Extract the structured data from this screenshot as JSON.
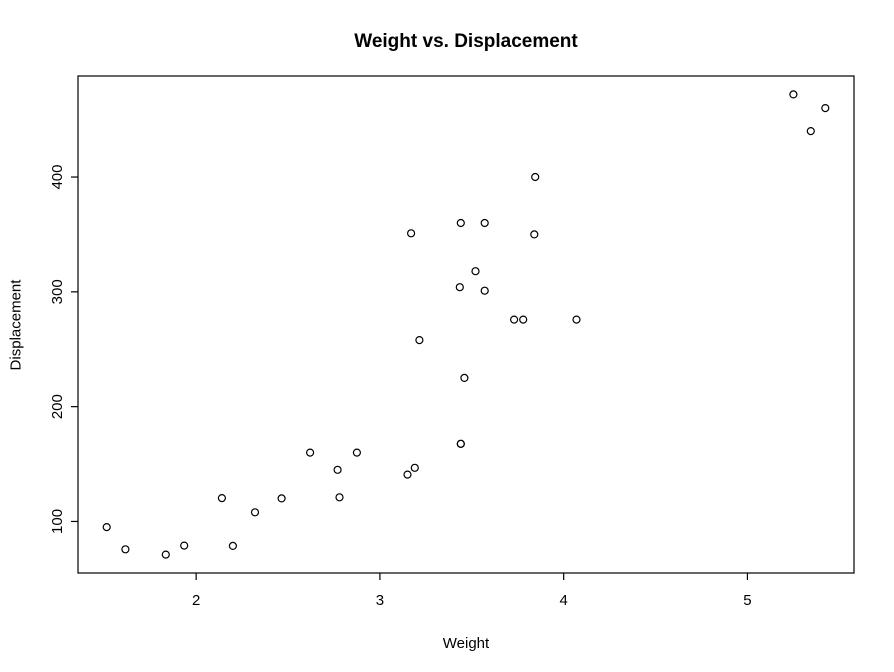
{
  "chart_data": {
    "type": "scatter",
    "title": "Weight vs. Displacement",
    "xlabel": "Weight",
    "ylabel": "Displacement",
    "x_ticks": [
      2,
      3,
      4,
      5
    ],
    "y_ticks": [
      100,
      200,
      300,
      400
    ],
    "xlim": [
      1.357,
      5.58
    ],
    "ylim": [
      55.1,
      488.0
    ],
    "grid": false,
    "legend_position": "none",
    "marker": {
      "shape": "open-circle",
      "radius_px": 3.5,
      "color": "#000000"
    },
    "axis_color": "#000000",
    "background_color": "#ffffff",
    "points": [
      [
        2.62,
        160.0
      ],
      [
        2.875,
        160.0
      ],
      [
        2.32,
        108.0
      ],
      [
        3.215,
        258.0
      ],
      [
        3.44,
        360.0
      ],
      [
        3.46,
        225.0
      ],
      [
        3.57,
        360.0
      ],
      [
        3.19,
        146.7
      ],
      [
        3.15,
        140.8
      ],
      [
        3.44,
        167.6
      ],
      [
        3.44,
        167.6
      ],
      [
        4.07,
        275.8
      ],
      [
        3.73,
        275.8
      ],
      [
        3.78,
        275.8
      ],
      [
        5.25,
        472.0
      ],
      [
        5.424,
        460.0
      ],
      [
        5.345,
        440.0
      ],
      [
        2.2,
        78.7
      ],
      [
        1.615,
        75.7
      ],
      [
        1.835,
        71.1
      ],
      [
        2.465,
        120.1
      ],
      [
        3.52,
        318.0
      ],
      [
        3.435,
        304.0
      ],
      [
        3.84,
        350.0
      ],
      [
        3.845,
        400.0
      ],
      [
        1.935,
        79.0
      ],
      [
        2.14,
        120.3
      ],
      [
        1.513,
        95.1
      ],
      [
        3.17,
        351.0
      ],
      [
        2.77,
        145.0
      ],
      [
        3.57,
        301.0
      ],
      [
        2.78,
        121.0
      ]
    ]
  }
}
